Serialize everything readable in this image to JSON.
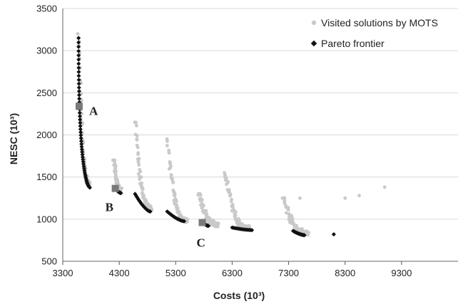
{
  "chart_data": {
    "type": "scatter",
    "title": "",
    "xlabel": "Costs (10³)",
    "ylabel": "NESC (10³)",
    "xlim": [
      3300,
      10300
    ],
    "ylim": [
      500,
      3500
    ],
    "x_ticks": [
      "3300",
      "4300",
      "5300",
      "6300",
      "7300",
      "8300",
      "9300"
    ],
    "y_ticks": [
      "500",
      "1000",
      "1500",
      "2000",
      "2500",
      "3000",
      "3500"
    ],
    "grid": "horizontal",
    "legend_position": "top-right",
    "colors": {
      "visited": "#c9c9c9",
      "pareto": "#111111",
      "highlight": "#7a7a7a"
    },
    "series": [
      {
        "name": "Visited solutions by MOTS",
        "marker": "dot",
        "clusters": [
          {
            "x_range": [
              3580,
              3780
            ],
            "y_top": 3200,
            "y_bottom": 1400
          },
          {
            "x_range": [
              4200,
              4330
            ],
            "y_top": 1700,
            "y_bottom": 1320
          },
          {
            "x_range": [
              4580,
              4880
            ],
            "y_top": 2150,
            "y_bottom": 1100
          },
          {
            "x_range": [
              5150,
              5500
            ],
            "y_top": 1950,
            "y_bottom": 960
          },
          {
            "x_range": [
              5700,
              6050
            ],
            "y_top": 1300,
            "y_bottom": 910
          },
          {
            "x_range": [
              6170,
              6600
            ],
            "y_top": 1550,
            "y_bottom": 870
          },
          {
            "x_range": [
              7200,
              7650
            ],
            "y_top": 1250,
            "y_bottom": 810
          }
        ],
        "outliers": [
          {
            "x": 8300,
            "y": 1250
          },
          {
            "x": 8550,
            "y": 1280
          },
          {
            "x": 9000,
            "y": 1380
          },
          {
            "x": 8100,
            "y": 820
          },
          {
            "x": 7500,
            "y": 1250
          },
          {
            "x": 6600,
            "y": 920
          }
        ]
      },
      {
        "name": "Pareto frontier",
        "marker": "diamond",
        "clusters": [
          {
            "x_range": [
              3580,
              3780
            ],
            "y_top": 3150,
            "y_bottom": 1375
          },
          {
            "x_range": [
              4230,
              4330
            ],
            "y_top": 1360,
            "y_bottom": 1310
          },
          {
            "x_range": [
              4580,
              4850
            ],
            "y_top": 1300,
            "y_bottom": 1090
          },
          {
            "x_range": [
              5150,
              5450
            ],
            "y_top": 1090,
            "y_bottom": 975
          },
          {
            "x_range": [
              5780,
              5880
            ],
            "y_top": 960,
            "y_bottom": 920
          },
          {
            "x_range": [
              6300,
              6650
            ],
            "y_top": 900,
            "y_bottom": 870
          },
          {
            "x_range": [
              7380,
              7580
            ],
            "y_top": 860,
            "y_bottom": 810
          }
        ],
        "outliers": [
          {
            "x": 8100,
            "y": 820
          }
        ]
      }
    ],
    "annotations": [
      {
        "label": "A",
        "x": 3590,
        "y": 2340
      },
      {
        "label": "B",
        "x": 4230,
        "y": 1365
      },
      {
        "label": "C",
        "x": 5770,
        "y": 960
      }
    ]
  }
}
